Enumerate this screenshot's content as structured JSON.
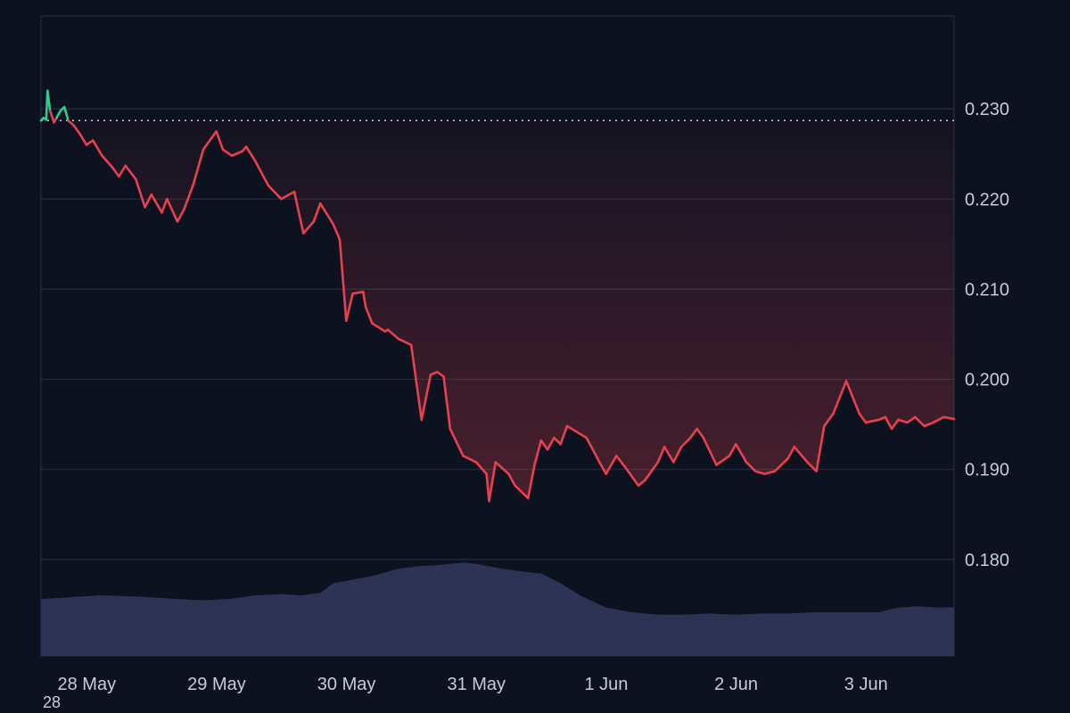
{
  "chart_data": {
    "type": "line",
    "title": "",
    "xlabel": "",
    "ylabel": "",
    "y_ticks": [
      0.18,
      0.19,
      0.2,
      0.21,
      0.22,
      0.23
    ],
    "y_tick_labels": [
      "0.180",
      "0.190",
      "0.200",
      "0.210",
      "0.220",
      "0.230"
    ],
    "x_ticks": [
      0,
      1,
      2,
      3,
      4,
      5,
      6
    ],
    "x_tick_labels": [
      "28 May",
      "29 May",
      "30 May",
      "31 May",
      "1 Jun",
      "2 Jun",
      "3 Jun"
    ],
    "xlim": [
      -0.05,
      6.98
    ],
    "ylim": [
      0.1693,
      0.2403
    ],
    "grid": true,
    "reference_line": {
      "value": 0.2287,
      "style": "dotted"
    },
    "series": [
      {
        "color_up": "#2ecc8f",
        "color_down": "#e8414e",
        "x": [
          -0.05,
          -0.03,
          -0.01,
          0.0,
          0.02,
          0.05,
          0.07,
          0.1,
          0.13,
          0.16,
          0.2,
          0.25,
          0.3,
          0.35,
          0.42,
          0.5,
          0.55,
          0.6,
          0.68,
          0.75,
          0.8,
          0.88,
          0.92,
          1.0,
          1.05,
          1.12,
          1.2,
          1.3,
          1.35,
          1.42,
          1.5,
          1.53,
          1.6,
          1.7,
          1.8,
          1.9,
          1.97,
          2.05,
          2.1,
          2.2,
          2.25,
          2.3,
          2.35,
          2.43,
          2.45,
          2.5,
          2.6,
          2.62,
          2.7,
          2.8,
          2.88,
          2.95,
          3.0,
          3.05,
          3.1,
          3.2,
          3.3,
          3.38,
          3.4,
          3.45,
          3.55,
          3.6,
          3.7,
          3.75,
          3.8,
          3.85,
          3.9,
          3.95,
          4.0,
          4.07,
          4.15,
          4.25,
          4.3,
          4.38,
          4.45,
          4.55,
          4.6,
          4.7,
          4.75,
          4.82,
          4.88,
          4.95,
          5.0,
          5.05,
          5.15,
          5.25,
          5.3,
          5.38,
          5.45,
          5.52,
          5.6,
          5.7,
          5.75,
          5.85,
          5.92,
          5.98,
          6.05,
          6.15,
          6.25,
          6.3,
          6.4,
          6.45,
          6.5,
          6.55,
          6.62,
          6.68,
          6.75,
          6.82,
          6.9,
          6.98
        ],
        "values": [
          0.2287,
          0.229,
          0.2288,
          0.232,
          0.2298,
          0.2285,
          0.229,
          0.2298,
          0.2302,
          0.2287,
          0.2282,
          0.2272,
          0.226,
          0.2265,
          0.2248,
          0.2235,
          0.2225,
          0.2237,
          0.2222,
          0.2191,
          0.2205,
          0.2185,
          0.22,
          0.2175,
          0.2188,
          0.2215,
          0.2255,
          0.2275,
          0.2255,
          0.2248,
          0.2253,
          0.2258,
          0.2242,
          0.2215,
          0.22,
          0.2208,
          0.2162,
          0.2175,
          0.2195,
          0.2172,
          0.2155,
          0.2065,
          0.2095,
          0.2097,
          0.208,
          0.2062,
          0.2053,
          0.2055,
          0.2045,
          0.2038,
          0.1955,
          0.2005,
          0.2008,
          0.2003,
          0.1945,
          0.1915,
          0.1908,
          0.1895,
          0.1865,
          0.1908,
          0.1895,
          0.1882,
          0.1868,
          0.1905,
          0.1932,
          0.1922,
          0.1935,
          0.1928,
          0.1948,
          0.1942,
          0.1935,
          0.1908,
          0.1895,
          0.1915,
          0.1902,
          0.1882,
          0.1888,
          0.1908,
          0.1925,
          0.1908,
          0.1925,
          0.1935,
          0.1945,
          0.1935,
          0.1905,
          0.1915,
          0.1928,
          0.1908,
          0.1898,
          0.1895,
          0.1898,
          0.1912,
          0.1925,
          0.1908,
          0.1898,
          0.1948,
          0.1962,
          0.1998,
          0.1962,
          0.1952,
          0.1955,
          0.1958,
          0.1945,
          0.1955,
          0.1952,
          0.1958,
          0.1948,
          0.1952,
          0.1958,
          0.1956
        ]
      }
    ],
    "volume": {
      "color": "#2e3658",
      "x": [
        -0.05,
        0.1,
        0.4,
        0.7,
        1.0,
        1.2,
        1.4,
        1.6,
        1.8,
        1.95,
        2.1,
        2.2,
        2.3,
        2.5,
        2.7,
        2.85,
        3.0,
        3.2,
        3.3,
        3.5,
        3.7,
        3.8,
        3.95,
        4.1,
        4.3,
        4.5,
        4.7,
        4.9,
        5.1,
        5.3,
        5.5,
        5.7,
        5.9,
        6.1,
        6.25,
        6.4,
        6.55,
        6.7,
        6.85,
        6.98
      ],
      "values": [
        0.47,
        0.48,
        0.5,
        0.49,
        0.47,
        0.46,
        0.47,
        0.5,
        0.51,
        0.5,
        0.52,
        0.6,
        0.62,
        0.66,
        0.72,
        0.74,
        0.75,
        0.77,
        0.76,
        0.72,
        0.69,
        0.68,
        0.6,
        0.5,
        0.4,
        0.36,
        0.34,
        0.34,
        0.35,
        0.34,
        0.35,
        0.35,
        0.36,
        0.36,
        0.36,
        0.36,
        0.4,
        0.41,
        0.4,
        0.4
      ]
    }
  },
  "footer_text": "28"
}
